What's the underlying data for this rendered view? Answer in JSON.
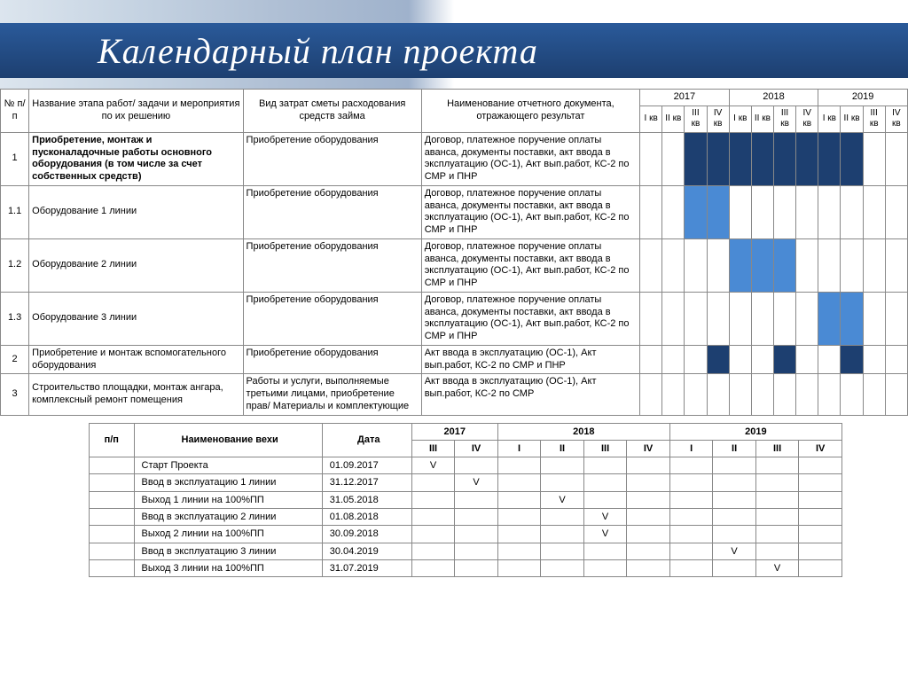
{
  "title": "Календарный план проекта",
  "colors": {
    "gantt_dark": "#1d3f70",
    "gantt_blue": "#4a8ad4",
    "header_grad_start": "#2a5a9a",
    "header_grad_end": "#1d3f70",
    "border": "#888888"
  },
  "mainTable": {
    "headers": {
      "num": "№ п/п",
      "stage": "Название этапа работ/ задачи и мероприятия по их решению",
      "cost": "Вид затрат сметы расходования средств займа",
      "doc": "Наименование отчетного документа, отражающего результат",
      "years": [
        "2017",
        "2018",
        "2019"
      ],
      "quarters": [
        "I кв",
        "II кв",
        "III кв",
        "IV кв"
      ]
    },
    "rows": [
      {
        "num": "1",
        "stage": "Приобретение, монтаж и пусконаладочные работы основного оборудования (в том числе за счет собственных средств)",
        "stageBold": true,
        "cost": "Приобретение оборудования",
        "doc": "Договор, платежное поручение оплаты аванса, документы поставки, акт ввода в эксплуатацию (ОС-1), Акт вып.работ, КС-2 по СМР и ПНР",
        "gantt": [
          "",
          "",
          "dark",
          "dark",
          "dark",
          "dark",
          "dark",
          "dark",
          "dark",
          "dark",
          "",
          ""
        ]
      },
      {
        "num": "1.1",
        "stage": "Оборудование 1 линии",
        "stageBold": false,
        "cost": "Приобретение оборудования",
        "doc": "Договор, платежное поручение оплаты аванса, документы поставки, акт ввода в эксплуатацию (ОС-1), Акт вып.работ, КС-2 по СМР и ПНР",
        "gantt": [
          "",
          "",
          "blue",
          "blue",
          "",
          "",
          "",
          "",
          "",
          "",
          "",
          ""
        ]
      },
      {
        "num": "1.2",
        "stage": "Оборудование 2 линии",
        "stageBold": false,
        "cost": "Приобретение оборудования",
        "doc": "Договор, платежное поручение оплаты аванса, документы поставки, акт ввода в эксплуатацию (ОС-1), Акт вып.работ, КС-2 по СМР и ПНР",
        "gantt": [
          "",
          "",
          "",
          "",
          "blue",
          "blue",
          "blue",
          "",
          "",
          "",
          "",
          ""
        ]
      },
      {
        "num": "1.3",
        "stage": "Оборудование 3 линии",
        "stageBold": false,
        "cost": "Приобретение оборудования",
        "doc": "Договор, платежное поручение оплаты аванса, документы поставки, акт ввода в эксплуатацию (ОС-1), Акт вып.работ, КС-2 по СМР и ПНР",
        "gantt": [
          "",
          "",
          "",
          "",
          "",
          "",
          "",
          "",
          "blue",
          "blue",
          "",
          ""
        ]
      },
      {
        "num": "2",
        "stage": "Приобретение и монтаж вспомогательного оборудования",
        "stageBold": false,
        "cost": "Приобретение оборудования",
        "doc": "Акт ввода в эксплуатацию (ОС-1), Акт вып.работ, КС-2 по СМР и ПНР",
        "gantt": [
          "",
          "",
          "",
          "dark",
          "",
          "",
          "dark",
          "",
          "",
          "dark",
          "",
          ""
        ]
      },
      {
        "num": "3",
        "stage": "Строительство площадки, монтаж ангара, комплексный ремонт помещения",
        "stageBold": false,
        "cost": "Работы и услуги, выполняемые третьими лицами, приобретение прав/ Материалы и комплектующие",
        "doc": "Акт ввода в эксплуатацию (ОС-1), Акт вып.работ, КС-2 по СМР",
        "gantt": [
          "",
          "",
          "",
          "",
          "",
          "",
          "",
          "",
          "",
          "",
          "",
          ""
        ]
      }
    ]
  },
  "milestoneTable": {
    "headers": {
      "num": "п/п",
      "name": "Наименование вехи",
      "date": "Дата",
      "years": [
        "2017",
        "2018",
        "2019"
      ],
      "q2017": [
        "III",
        "IV"
      ],
      "q2018": [
        "I",
        "II",
        "III",
        "IV"
      ],
      "q2019": [
        "I",
        "II",
        "III",
        "IV"
      ]
    },
    "rows": [
      {
        "name": "Старт Проекта",
        "date": "01.09.2017",
        "mark": 0
      },
      {
        "name": "Ввод в эксплуатацию 1 линии",
        "date": "31.12.2017",
        "mark": 1
      },
      {
        "name": "Выход 1 линии на 100%ПП",
        "date": "31.05.2018",
        "mark": 3
      },
      {
        "name": "Ввод в эксплуатацию 2 линии",
        "date": "01.08.2018",
        "mark": 4
      },
      {
        "name": "Выход 2 линии на 100%ПП",
        "date": "30.09.2018",
        "mark": 4
      },
      {
        "name": "Ввод в эксплуатацию 3 линии",
        "date": "30.04.2019",
        "mark": 7
      },
      {
        "name": "Выход 3 линии на 100%ПП",
        "date": "31.07.2019",
        "mark": 8
      }
    ],
    "markSymbol": "V"
  }
}
